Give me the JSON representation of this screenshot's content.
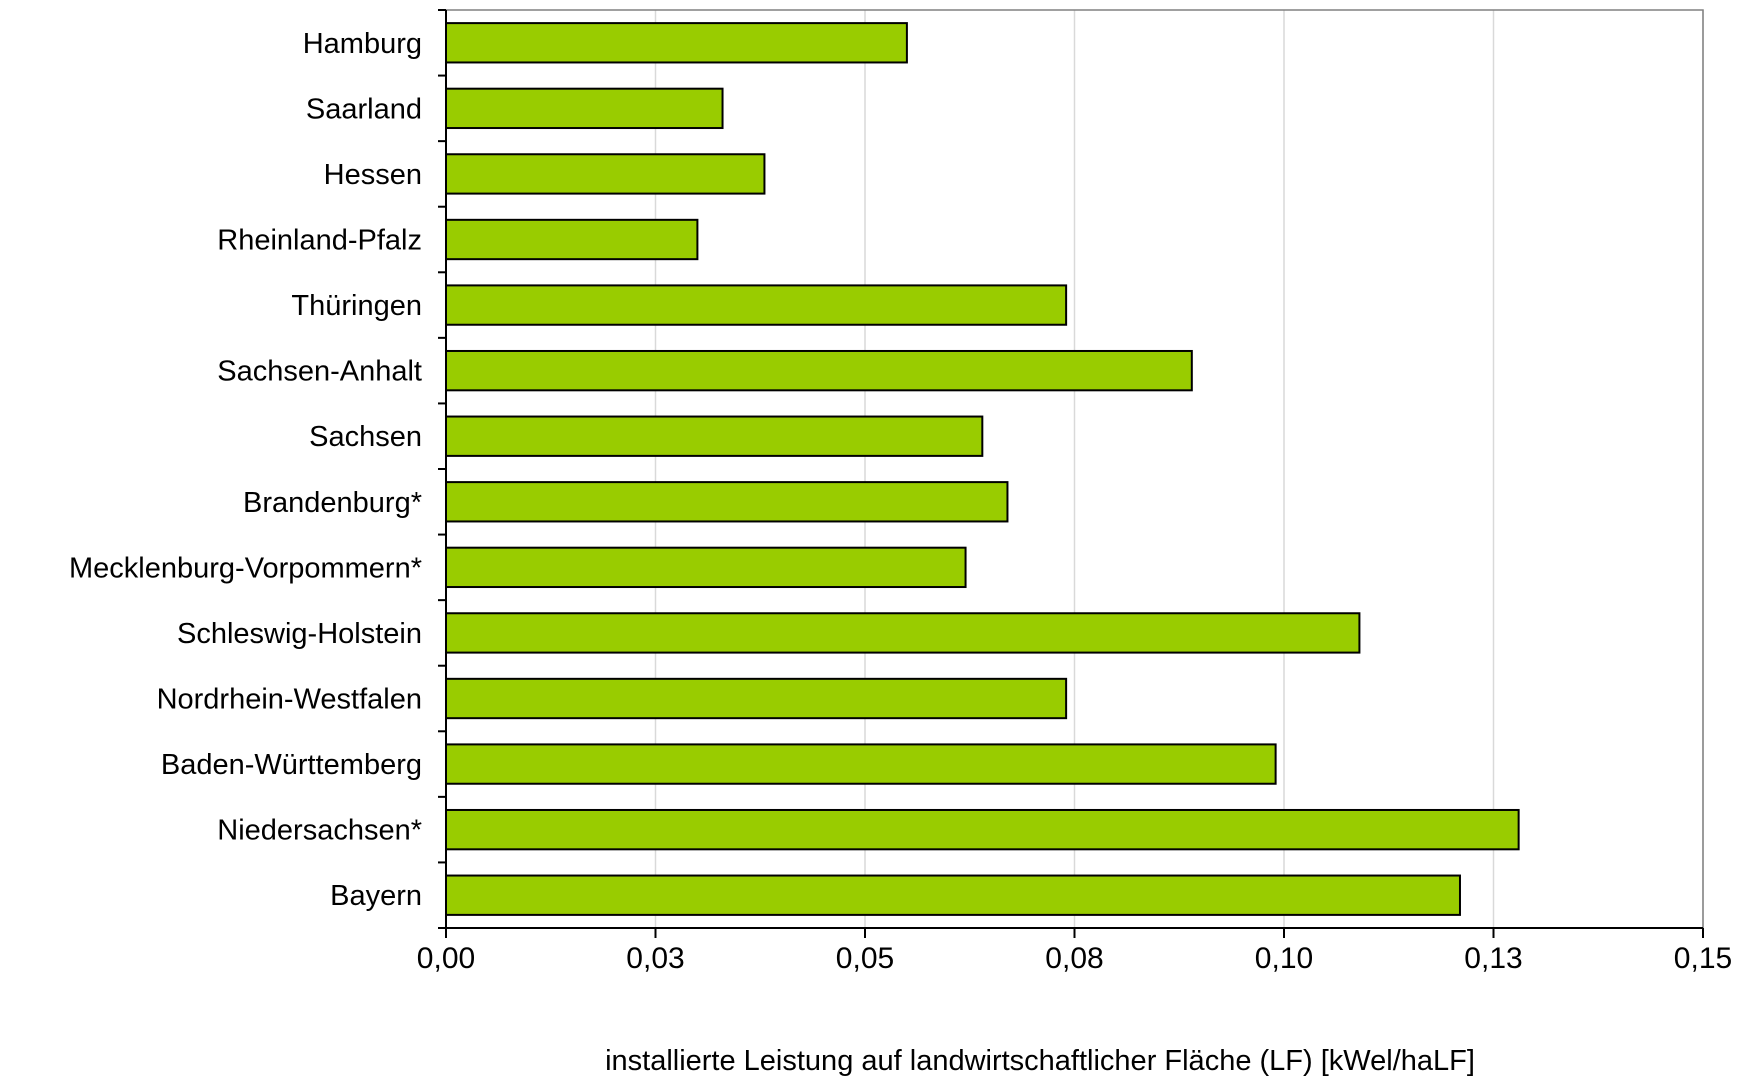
{
  "chart_data": {
    "type": "bar",
    "orientation": "horizontal",
    "categories": [
      "Hamburg",
      "Saarland",
      "Hessen",
      "Rheinland-Pfalz",
      "Thüringen",
      "Sachsen-Anhalt",
      "Sachsen",
      "Brandenburg*",
      "Mecklenburg-Vorpommern*",
      "Schleswig-Holstein",
      "Nordrhein-Westfalen",
      "Baden-Württemberg",
      "Niedersachsen*",
      "Bayern"
    ],
    "values": [
      0.055,
      0.033,
      0.038,
      0.03,
      0.074,
      0.089,
      0.064,
      0.067,
      0.062,
      0.109,
      0.074,
      0.099,
      0.128,
      0.121
    ],
    "xlabel": "installierte Leistung auf landwirtschaftlicher Fläche (LF) [kWel/haLF]",
    "ylabel": "",
    "title": "",
    "xlim": [
      0,
      0.15
    ],
    "x_ticks": [
      0,
      0.025,
      0.05,
      0.075,
      0.1,
      0.125,
      0.15
    ],
    "x_tick_labels": [
      "0,00",
      "0,03",
      "0,05",
      "0,08",
      "0,10",
      "0,13",
      "0,15"
    ],
    "grid": "vertical",
    "legend": "none",
    "colors": {
      "bar_fill": "#99cc00",
      "bar_stroke": "#000000",
      "grid": "#d9d9d9",
      "frame": "#808080",
      "axis": "#000000"
    }
  }
}
